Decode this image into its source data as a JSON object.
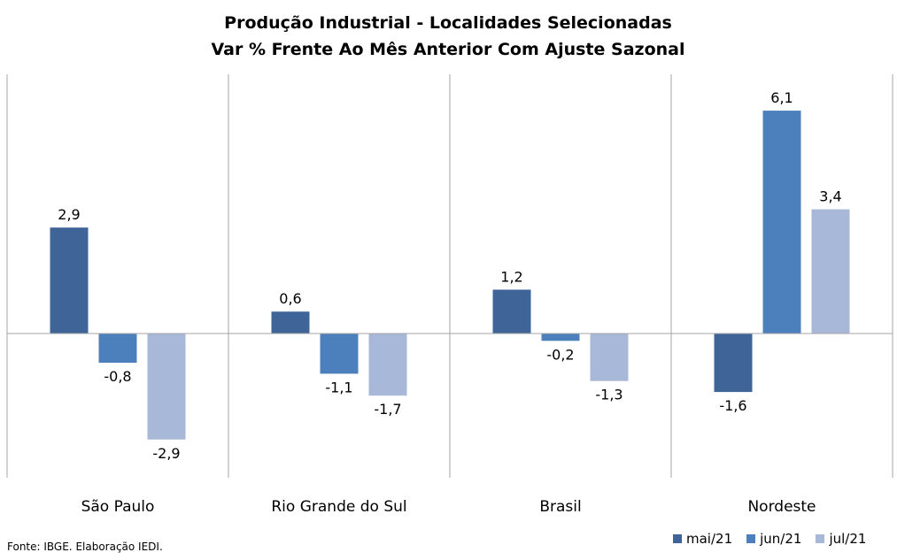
{
  "chart_data": {
    "type": "bar",
    "title": "Produção Industrial - Localidades Selecionadas",
    "subtitle": "Var % Frente Ao Mês Anterior Com Ajuste Sazonal",
    "categories": [
      "São Paulo",
      "Rio Grande do Sul",
      "Brasil",
      "Nordeste"
    ],
    "series": [
      {
        "name": "mai/21",
        "color": "#3f6598",
        "values": [
          2.9,
          0.6,
          1.2,
          -1.6
        ],
        "labels": [
          "2,9",
          "0,6",
          "1,2",
          "-1,6"
        ]
      },
      {
        "name": "jun/21",
        "color": "#4c80bd",
        "values": [
          -0.8,
          -1.1,
          -0.2,
          6.1
        ],
        "labels": [
          "-0,8",
          "-1,1",
          "-0,2",
          "6,1"
        ]
      },
      {
        "name": "jul/21",
        "color": "#a8b8d8",
        "values": [
          -2.9,
          -1.7,
          -1.3,
          3.4
        ],
        "labels": [
          "-2,9",
          "-1,7",
          "-1,3",
          "3,4"
        ]
      }
    ],
    "legend_position": "bottom-right",
    "grid": false
  },
  "source": "Fonte: IBGE. Elaboração IEDI."
}
